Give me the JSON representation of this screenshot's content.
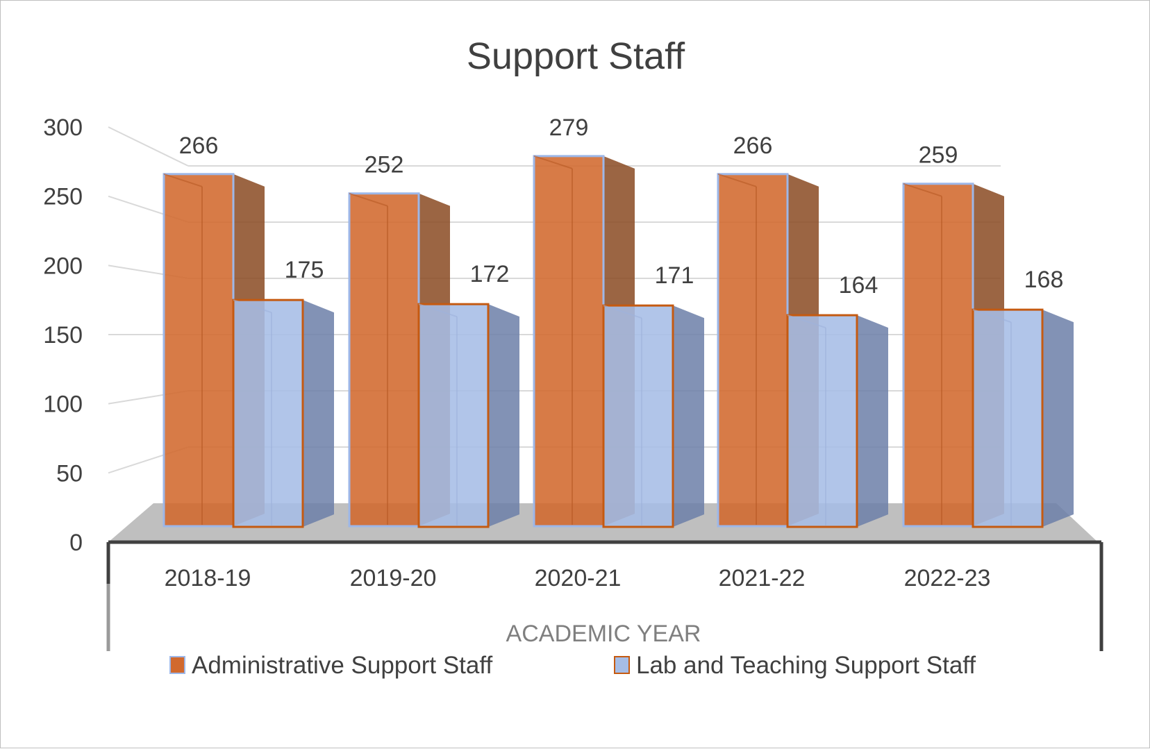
{
  "chart_data": {
    "type": "bar",
    "title": "Support Staff",
    "xlabel": "ACADEMIC YEAR",
    "ylabel": "",
    "categories": [
      "2018-19",
      "2019-20",
      "2020-21",
      "2021-22",
      "2022-23"
    ],
    "series": [
      {
        "name": "Administrative Support Staff",
        "values": [
          266,
          252,
          279,
          266,
          259
        ],
        "fill": "#d1692e",
        "edge": "#9db7e8"
      },
      {
        "name": "Lab and Teaching Support Staff",
        "values": [
          175,
          172,
          171,
          164,
          168
        ],
        "fill": "#a6bde6",
        "edge": "#c55a11"
      }
    ],
    "ylim": [
      0,
      300
    ],
    "yticks": [
      "0",
      "50",
      "100",
      "150",
      "200",
      "250",
      "300"
    ],
    "grid": true,
    "legend": "bottom",
    "floor_color": "#bfbfbf"
  }
}
